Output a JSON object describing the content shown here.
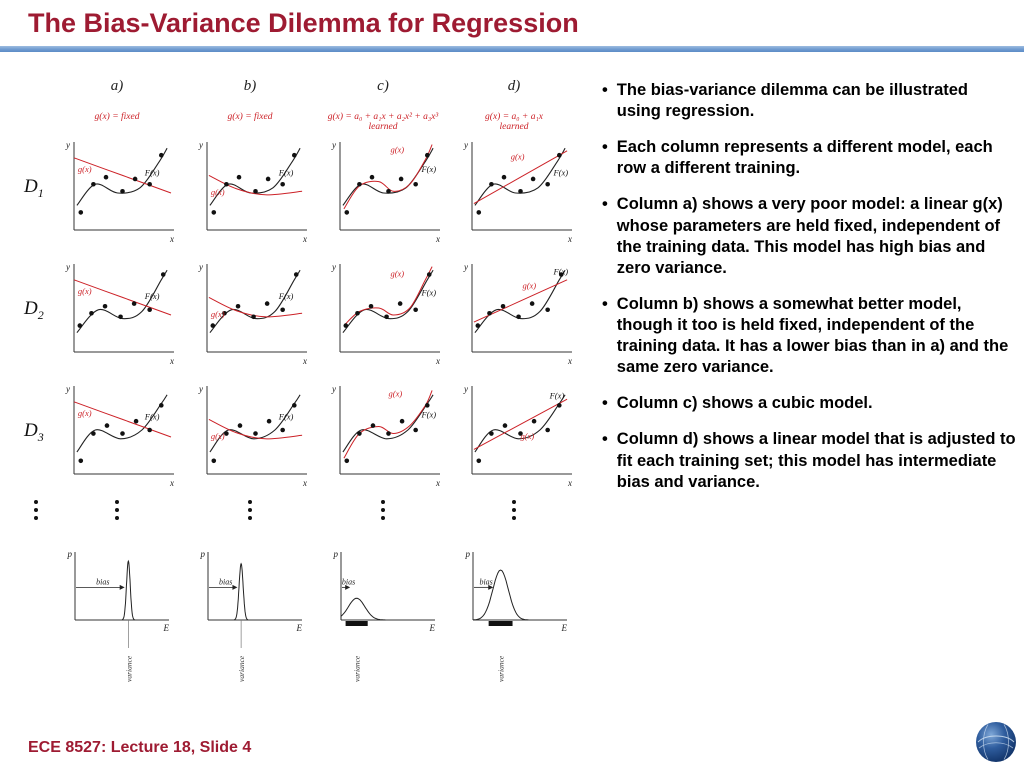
{
  "slide": {
    "title": "The Bias-Variance Dilemma for Regression",
    "footer": "ECE 8527: Lecture 18, Slide 4",
    "accent_color": "#9e1b32",
    "rule_color": "#6f9bd0",
    "curve_red": "#cc2127"
  },
  "ui": {
    "bullet_char": "•"
  },
  "bullets": [
    "The bias-variance dilemma can be illustrated using regression.",
    "Each column represents a different model, each row a different training.",
    "Column a) shows a very poor model: a linear g(x) whose parameters are held fixed, independent of the training data. This model has high bias and zero variance.",
    "Column b) shows a somewhat better model, though it too is held fixed, independent of the training data. It has a lower bias than in a) and the same zero variance.",
    "Column c) shows a cubic model.",
    "Column d) shows a linear model that is adjusted to fit each training set; this model has intermediate bias and variance."
  ],
  "figure": {
    "columns": [
      {
        "header": "a)",
        "formula": "g(x) = fixed"
      },
      {
        "header": "b)",
        "formula": "g(x) = fixed"
      },
      {
        "header": "c)",
        "formula": "g(x) = a₀ + a₁x + a₂x² + a₃x³",
        "note": "learned"
      },
      {
        "header": "d)",
        "formula": "g(x) = a₀ + a₁x",
        "note": "learned"
      }
    ],
    "row_labels": [
      {
        "base": "D",
        "sub": "1"
      },
      {
        "base": "D",
        "sub": "2"
      },
      {
        "base": "D",
        "sub": "3"
      }
    ],
    "labels": {
      "x": "x",
      "y": "y",
      "p": "p",
      "E": "E",
      "g": "g(x)",
      "F": "F(x)",
      "bias": "bias",
      "variance": "variance"
    },
    "cells": [
      {
        "row": "D1",
        "col": "a",
        "points": [
          [
            0.07,
            0.2
          ],
          [
            0.2,
            0.52
          ],
          [
            0.33,
            0.6
          ],
          [
            0.5,
            0.44
          ],
          [
            0.63,
            0.58
          ],
          [
            0.78,
            0.52
          ],
          [
            0.9,
            0.85
          ]
        ],
        "F": [
          [
            0.03,
            0.28
          ],
          [
            0.22,
            0.52
          ],
          [
            0.45,
            0.42
          ],
          [
            0.68,
            0.48
          ],
          [
            0.88,
            0.78
          ],
          [
            0.96,
            0.93
          ]
        ],
        "g": [
          [
            0.0,
            0.82
          ],
          [
            0.5,
            0.62
          ],
          [
            1.0,
            0.42
          ]
        ],
        "g_label": [
          0.04,
          0.66
        ],
        "F_label": [
          0.73,
          0.62
        ]
      },
      {
        "row": "D1",
        "col": "b",
        "points": [
          [
            0.07,
            0.2
          ],
          [
            0.2,
            0.52
          ],
          [
            0.33,
            0.6
          ],
          [
            0.5,
            0.44
          ],
          [
            0.63,
            0.58
          ],
          [
            0.78,
            0.52
          ],
          [
            0.9,
            0.85
          ]
        ],
        "F": [
          [
            0.03,
            0.28
          ],
          [
            0.22,
            0.52
          ],
          [
            0.45,
            0.42
          ],
          [
            0.68,
            0.48
          ],
          [
            0.88,
            0.78
          ],
          [
            0.96,
            0.93
          ]
        ],
        "g": [
          [
            0.02,
            0.62
          ],
          [
            0.3,
            0.47
          ],
          [
            0.6,
            0.4
          ],
          [
            0.98,
            0.44
          ]
        ],
        "g_label": [
          0.04,
          0.4
        ],
        "F_label": [
          0.74,
          0.62
        ]
      },
      {
        "row": "D1",
        "col": "c",
        "points": [
          [
            0.07,
            0.2
          ],
          [
            0.2,
            0.52
          ],
          [
            0.33,
            0.6
          ],
          [
            0.5,
            0.44
          ],
          [
            0.63,
            0.58
          ],
          [
            0.78,
            0.52
          ],
          [
            0.9,
            0.85
          ]
        ],
        "F": [
          [
            0.03,
            0.28
          ],
          [
            0.22,
            0.52
          ],
          [
            0.45,
            0.42
          ],
          [
            0.68,
            0.48
          ],
          [
            0.88,
            0.78
          ],
          [
            0.96,
            0.93
          ]
        ],
        "g": [
          [
            0.04,
            0.24
          ],
          [
            0.2,
            0.5
          ],
          [
            0.4,
            0.55
          ],
          [
            0.55,
            0.44
          ],
          [
            0.72,
            0.52
          ],
          [
            0.88,
            0.8
          ],
          [
            0.95,
            0.97
          ]
        ],
        "g_label": [
          0.52,
          0.88
        ],
        "F_label": [
          0.84,
          0.66
        ]
      },
      {
        "row": "D1",
        "col": "d",
        "points": [
          [
            0.07,
            0.2
          ],
          [
            0.2,
            0.52
          ],
          [
            0.33,
            0.6
          ],
          [
            0.5,
            0.44
          ],
          [
            0.63,
            0.58
          ],
          [
            0.78,
            0.52
          ],
          [
            0.9,
            0.85
          ]
        ],
        "F": [
          [
            0.03,
            0.28
          ],
          [
            0.22,
            0.52
          ],
          [
            0.45,
            0.42
          ],
          [
            0.68,
            0.48
          ],
          [
            0.88,
            0.78
          ],
          [
            0.96,
            0.93
          ]
        ],
        "g": [
          [
            0.02,
            0.3
          ],
          [
            0.98,
            0.9
          ]
        ],
        "g_label": [
          0.4,
          0.8
        ],
        "F_label": [
          0.84,
          0.62
        ]
      },
      {
        "row": "D2",
        "col": "a",
        "points": [
          [
            0.06,
            0.3
          ],
          [
            0.18,
            0.44
          ],
          [
            0.32,
            0.52
          ],
          [
            0.48,
            0.4
          ],
          [
            0.62,
            0.55
          ],
          [
            0.78,
            0.48
          ],
          [
            0.92,
            0.88
          ]
        ],
        "F": [
          [
            0.03,
            0.22
          ],
          [
            0.25,
            0.48
          ],
          [
            0.5,
            0.38
          ],
          [
            0.7,
            0.46
          ],
          [
            0.9,
            0.82
          ],
          [
            0.96,
            0.93
          ]
        ],
        "g": [
          [
            0.0,
            0.82
          ],
          [
            0.5,
            0.62
          ],
          [
            1.0,
            0.42
          ]
        ],
        "g_label": [
          0.04,
          0.66
        ],
        "F_label": [
          0.73,
          0.6
        ]
      },
      {
        "row": "D2",
        "col": "b",
        "points": [
          [
            0.06,
            0.3
          ],
          [
            0.18,
            0.44
          ],
          [
            0.32,
            0.52
          ],
          [
            0.48,
            0.4
          ],
          [
            0.62,
            0.55
          ],
          [
            0.78,
            0.48
          ],
          [
            0.92,
            0.88
          ]
        ],
        "F": [
          [
            0.03,
            0.22
          ],
          [
            0.25,
            0.48
          ],
          [
            0.5,
            0.38
          ],
          [
            0.7,
            0.46
          ],
          [
            0.9,
            0.82
          ],
          [
            0.96,
            0.93
          ]
        ],
        "g": [
          [
            0.02,
            0.62
          ],
          [
            0.3,
            0.47
          ],
          [
            0.6,
            0.4
          ],
          [
            0.98,
            0.44
          ]
        ],
        "g_label": [
          0.04,
          0.4
        ],
        "F_label": [
          0.74,
          0.6
        ]
      },
      {
        "row": "D2",
        "col": "c",
        "points": [
          [
            0.06,
            0.3
          ],
          [
            0.18,
            0.44
          ],
          [
            0.32,
            0.52
          ],
          [
            0.48,
            0.4
          ],
          [
            0.62,
            0.55
          ],
          [
            0.78,
            0.48
          ],
          [
            0.92,
            0.88
          ]
        ],
        "F": [
          [
            0.03,
            0.22
          ],
          [
            0.25,
            0.48
          ],
          [
            0.5,
            0.38
          ],
          [
            0.7,
            0.46
          ],
          [
            0.9,
            0.82
          ],
          [
            0.96,
            0.93
          ]
        ],
        "g": [
          [
            0.04,
            0.3
          ],
          [
            0.2,
            0.46
          ],
          [
            0.4,
            0.5
          ],
          [
            0.55,
            0.42
          ],
          [
            0.72,
            0.5
          ],
          [
            0.88,
            0.82
          ],
          [
            0.95,
            0.97
          ]
        ],
        "g_label": [
          0.52,
          0.86
        ],
        "F_label": [
          0.84,
          0.64
        ]
      },
      {
        "row": "D2",
        "col": "d",
        "points": [
          [
            0.06,
            0.3
          ],
          [
            0.18,
            0.44
          ],
          [
            0.32,
            0.52
          ],
          [
            0.48,
            0.4
          ],
          [
            0.62,
            0.55
          ],
          [
            0.78,
            0.48
          ],
          [
            0.92,
            0.88
          ]
        ],
        "F": [
          [
            0.03,
            0.22
          ],
          [
            0.25,
            0.48
          ],
          [
            0.5,
            0.38
          ],
          [
            0.7,
            0.46
          ],
          [
            0.9,
            0.82
          ],
          [
            0.96,
            0.93
          ]
        ],
        "g": [
          [
            0.02,
            0.34
          ],
          [
            0.98,
            0.82
          ]
        ],
        "g_label": [
          0.52,
          0.72
        ],
        "F_label": [
          0.84,
          0.88
        ]
      },
      {
        "row": "D3",
        "col": "a",
        "points": [
          [
            0.07,
            0.15
          ],
          [
            0.2,
            0.46
          ],
          [
            0.34,
            0.55
          ],
          [
            0.5,
            0.46
          ],
          [
            0.64,
            0.6
          ],
          [
            0.78,
            0.5
          ],
          [
            0.9,
            0.78
          ]
        ],
        "F": [
          [
            0.03,
            0.25
          ],
          [
            0.22,
            0.5
          ],
          [
            0.48,
            0.4
          ],
          [
            0.7,
            0.5
          ],
          [
            0.9,
            0.8
          ],
          [
            0.96,
            0.9
          ]
        ],
        "g": [
          [
            0.0,
            0.82
          ],
          [
            0.5,
            0.62
          ],
          [
            1.0,
            0.42
          ]
        ],
        "g_label": [
          0.04,
          0.66
        ],
        "F_label": [
          0.73,
          0.62
        ]
      },
      {
        "row": "D3",
        "col": "b",
        "points": [
          [
            0.07,
            0.15
          ],
          [
            0.2,
            0.46
          ],
          [
            0.34,
            0.55
          ],
          [
            0.5,
            0.46
          ],
          [
            0.64,
            0.6
          ],
          [
            0.78,
            0.5
          ],
          [
            0.9,
            0.78
          ]
        ],
        "F": [
          [
            0.03,
            0.25
          ],
          [
            0.22,
            0.5
          ],
          [
            0.48,
            0.4
          ],
          [
            0.7,
            0.5
          ],
          [
            0.9,
            0.8
          ],
          [
            0.96,
            0.9
          ]
        ],
        "g": [
          [
            0.02,
            0.62
          ],
          [
            0.3,
            0.47
          ],
          [
            0.6,
            0.4
          ],
          [
            0.98,
            0.44
          ]
        ],
        "g_label": [
          0.04,
          0.4
        ],
        "F_label": [
          0.74,
          0.62
        ]
      },
      {
        "row": "D3",
        "col": "c",
        "points": [
          [
            0.07,
            0.15
          ],
          [
            0.2,
            0.46
          ],
          [
            0.34,
            0.55
          ],
          [
            0.5,
            0.46
          ],
          [
            0.64,
            0.6
          ],
          [
            0.78,
            0.5
          ],
          [
            0.9,
            0.78
          ]
        ],
        "F": [
          [
            0.03,
            0.25
          ],
          [
            0.22,
            0.5
          ],
          [
            0.48,
            0.4
          ],
          [
            0.7,
            0.5
          ],
          [
            0.9,
            0.8
          ],
          [
            0.96,
            0.9
          ]
        ],
        "g": [
          [
            0.04,
            0.18
          ],
          [
            0.2,
            0.46
          ],
          [
            0.4,
            0.54
          ],
          [
            0.55,
            0.46
          ],
          [
            0.72,
            0.55
          ],
          [
            0.88,
            0.78
          ],
          [
            0.95,
            0.95
          ]
        ],
        "g_label": [
          0.5,
          0.88
        ],
        "F_label": [
          0.84,
          0.64
        ]
      },
      {
        "row": "D3",
        "col": "d",
        "points": [
          [
            0.07,
            0.15
          ],
          [
            0.2,
            0.46
          ],
          [
            0.34,
            0.55
          ],
          [
            0.5,
            0.46
          ],
          [
            0.64,
            0.6
          ],
          [
            0.78,
            0.5
          ],
          [
            0.9,
            0.78
          ]
        ],
        "F": [
          [
            0.03,
            0.25
          ],
          [
            0.22,
            0.5
          ],
          [
            0.48,
            0.4
          ],
          [
            0.7,
            0.5
          ],
          [
            0.9,
            0.8
          ],
          [
            0.96,
            0.9
          ]
        ],
        "g": [
          [
            0.02,
            0.28
          ],
          [
            0.98,
            0.85
          ]
        ],
        "g_label": [
          0.5,
          0.4
        ],
        "F_label": [
          0.8,
          0.86
        ]
      }
    ],
    "dist": [
      {
        "col": "a",
        "mu": 0.58,
        "sigma": 0.02,
        "h": 0.92,
        "bias_to": 0.54
      },
      {
        "col": "b",
        "mu": 0.36,
        "sigma": 0.022,
        "h": 0.88,
        "bias_to": 0.32
      },
      {
        "col": "c",
        "mu": 0.17,
        "sigma": 0.09,
        "h": 0.34,
        "bias_to": 0.1,
        "bar": [
          0.05,
          0.29
        ]
      },
      {
        "col": "d",
        "mu": 0.3,
        "sigma": 0.085,
        "h": 0.78,
        "bias_to": 0.22,
        "bar": [
          0.17,
          0.43
        ]
      }
    ]
  }
}
